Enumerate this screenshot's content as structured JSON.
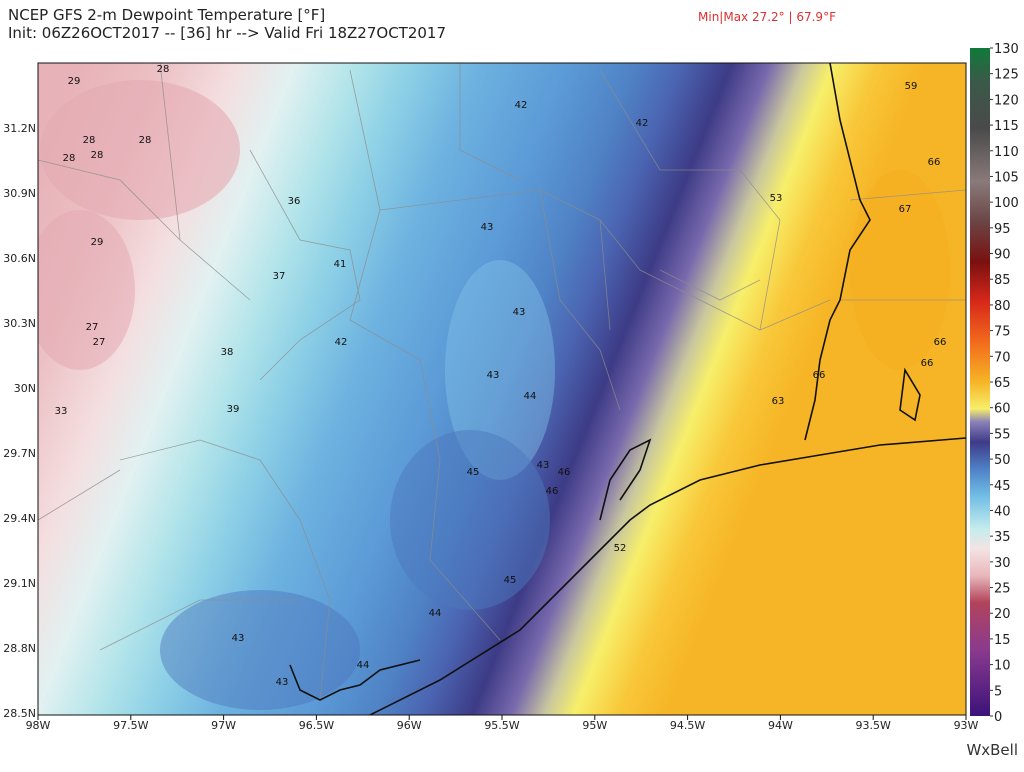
{
  "header": {
    "title": "NCEP GFS 2-m Dewpoint Temperature [°F]",
    "subtitle": "Init: 06Z26OCT2017 -- [36] hr --> Valid Fri 18Z27OCT2017",
    "minmax": "Min|Max 27.2° | 67.9°F"
  },
  "map": {
    "lon_labels": [
      "98W",
      "97.5W",
      "97W",
      "96.5W",
      "96W",
      "95.5W",
      "95W",
      "94.5W",
      "94W",
      "93.5W",
      "93W"
    ],
    "lat_labels": [
      "31.2N",
      "30.9N",
      "30.6N",
      "30.3N",
      "30N",
      "29.7N",
      "29.4N",
      "29.1N",
      "28.8N",
      "28.5N"
    ],
    "labels": [
      29,
      28,
      28,
      28,
      28,
      28,
      29,
      36,
      41,
      37,
      27,
      27,
      38,
      42,
      33,
      39,
      42,
      42,
      43,
      43,
      43,
      44,
      45,
      43,
      46,
      46,
      52,
      45,
      44,
      43,
      44,
      43,
      53,
      59,
      66,
      67,
      66,
      66,
      66,
      63
    ]
  },
  "colorbar": {
    "ticks": [
      0,
      5,
      10,
      15,
      20,
      25,
      30,
      35,
      40,
      45,
      50,
      55,
      60,
      65,
      70,
      75,
      80,
      85,
      90,
      95,
      100,
      105,
      110,
      115,
      120,
      125,
      130
    ]
  },
  "footer": {
    "logo": "WxBell"
  }
}
